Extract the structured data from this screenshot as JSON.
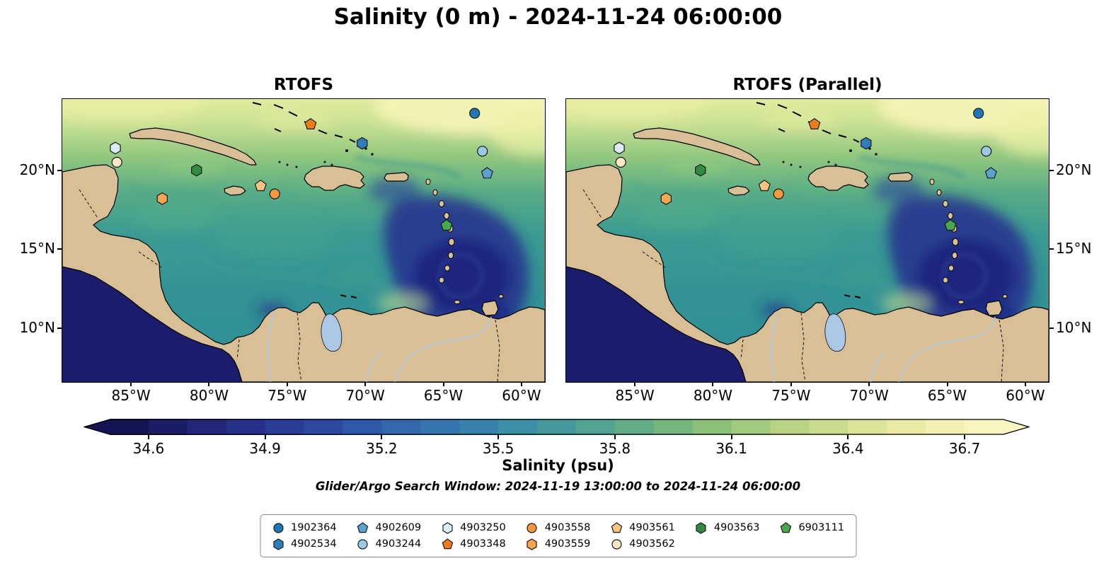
{
  "title": "Salinity (0 m) - 2024-11-24 06:00:00",
  "panels": [
    {
      "title": "RTOFS"
    },
    {
      "title": "RTOFS (Parallel)"
    }
  ],
  "axes": {
    "lon_min": -89.4,
    "lon_max": -58.5,
    "lat_min": 6.6,
    "lat_max": 24.5,
    "x_ticks": [
      {
        "label": "85°W",
        "lon": -85
      },
      {
        "label": "80°W",
        "lon": -80
      },
      {
        "label": "75°W",
        "lon": -75
      },
      {
        "label": "70°W",
        "lon": -70
      },
      {
        "label": "65°W",
        "lon": -65
      },
      {
        "label": "60°W",
        "lon": -60
      }
    ],
    "y_ticks": [
      {
        "label": "20°N",
        "lat": 20
      },
      {
        "label": "15°N",
        "lat": 15
      },
      {
        "label": "10°N",
        "lat": 10
      }
    ]
  },
  "colorbar": {
    "label": "Salinity (psu)",
    "vmin": 34.5,
    "vmax": 36.8,
    "ticks": [
      34.6,
      34.9,
      35.2,
      35.5,
      35.8,
      36.1,
      36.4,
      36.7
    ],
    "colors": [
      "#141452",
      "#1a1c66",
      "#212678",
      "#273089",
      "#2b3c96",
      "#2e4aa0",
      "#3158a8",
      "#3366ac",
      "#3574ae",
      "#3782ab",
      "#3c8fa4",
      "#45999a",
      "#52a390",
      "#62ad86",
      "#75b67d",
      "#8bc07a",
      "#a1ca7c",
      "#b7d383",
      "#cbdc8d",
      "#dde59a",
      "#eaeca6",
      "#f2f1b3",
      "#f7f5c2"
    ]
  },
  "subtitle": "Glider/Argo Search Window: 2024-11-19 13:00:00 to 2024-11-24 06:00:00",
  "legend": {
    "columns": [
      [
        "1902364",
        "4902534"
      ],
      [
        "4902609",
        "4903244"
      ],
      [
        "4903250",
        "4903348"
      ],
      [
        "4903558",
        "4903559"
      ],
      [
        "4903561",
        "4903562"
      ],
      [
        "4903563"
      ],
      [
        "6903111"
      ]
    ]
  },
  "chart_data": {
    "type": "heatmap",
    "title": "Salinity (0 m) - 2024-11-24 06:00:00",
    "variable": "Salinity",
    "units": "psu",
    "depth_m": 0,
    "valid_time": "2024-11-24 06:00:00",
    "panel_titles": [
      "RTOFS",
      "RTOFS (Parallel)"
    ],
    "region": "Caribbean Sea",
    "lon_range": [
      -89.4,
      -58.5
    ],
    "lat_range": [
      6.6,
      24.5
    ],
    "x_tick_labels": [
      "85°W",
      "80°W",
      "75°W",
      "70°W",
      "65°W",
      "60°W"
    ],
    "y_tick_labels": [
      "20°N",
      "15°N",
      "10°N"
    ],
    "colorbar_label": "Salinity (psu)",
    "colorbar_ticks": [
      34.6,
      34.9,
      35.2,
      35.5,
      35.8,
      36.1,
      36.4,
      36.7
    ],
    "colorbar_range": [
      34.5,
      36.8
    ],
    "search_window": "2024-11-19 13:00:00 to 2024-11-24 06:00:00",
    "platforms": [
      {
        "id": "1902364",
        "marker": "circle",
        "color": "#1f78b4",
        "lon": -63.0,
        "lat": 23.6
      },
      {
        "id": "4902534",
        "marker": "hexagon",
        "color": "#2e7ebc",
        "lon": -70.2,
        "lat": 21.7
      },
      {
        "id": "4902609",
        "marker": "pentagon",
        "color": "#5aa2d0",
        "lon": -62.2,
        "lat": 19.8
      },
      {
        "id": "4903244",
        "marker": "circle",
        "color": "#9dc9e8",
        "lon": -62.5,
        "lat": 21.2
      },
      {
        "id": "4903250",
        "marker": "hexagon",
        "color": "#d9ecf7",
        "lon": -86.0,
        "lat": 21.4
      },
      {
        "id": "4903348",
        "marker": "pentagon",
        "color": "#f07d1a",
        "lon": -73.5,
        "lat": 22.9
      },
      {
        "id": "4903558",
        "marker": "circle",
        "color": "#f5993d",
        "lon": -75.8,
        "lat": 18.5
      },
      {
        "id": "4903559",
        "marker": "hexagon",
        "color": "#f7a54f",
        "lon": -83.0,
        "lat": 18.2
      },
      {
        "id": "4903561",
        "marker": "pentagon",
        "color": "#fac382",
        "lon": -76.7,
        "lat": 19.0
      },
      {
        "id": "4903562",
        "marker": "circle",
        "color": "#fbe6c5",
        "lon": -85.9,
        "lat": 20.5
      },
      {
        "id": "4903563",
        "marker": "hexagon",
        "color": "#2e8b40",
        "lon": -80.8,
        "lat": 20.0
      },
      {
        "id": "6903111",
        "marker": "pentagon",
        "color": "#47a84e",
        "lon": -64.8,
        "lat": 16.5
      }
    ]
  }
}
